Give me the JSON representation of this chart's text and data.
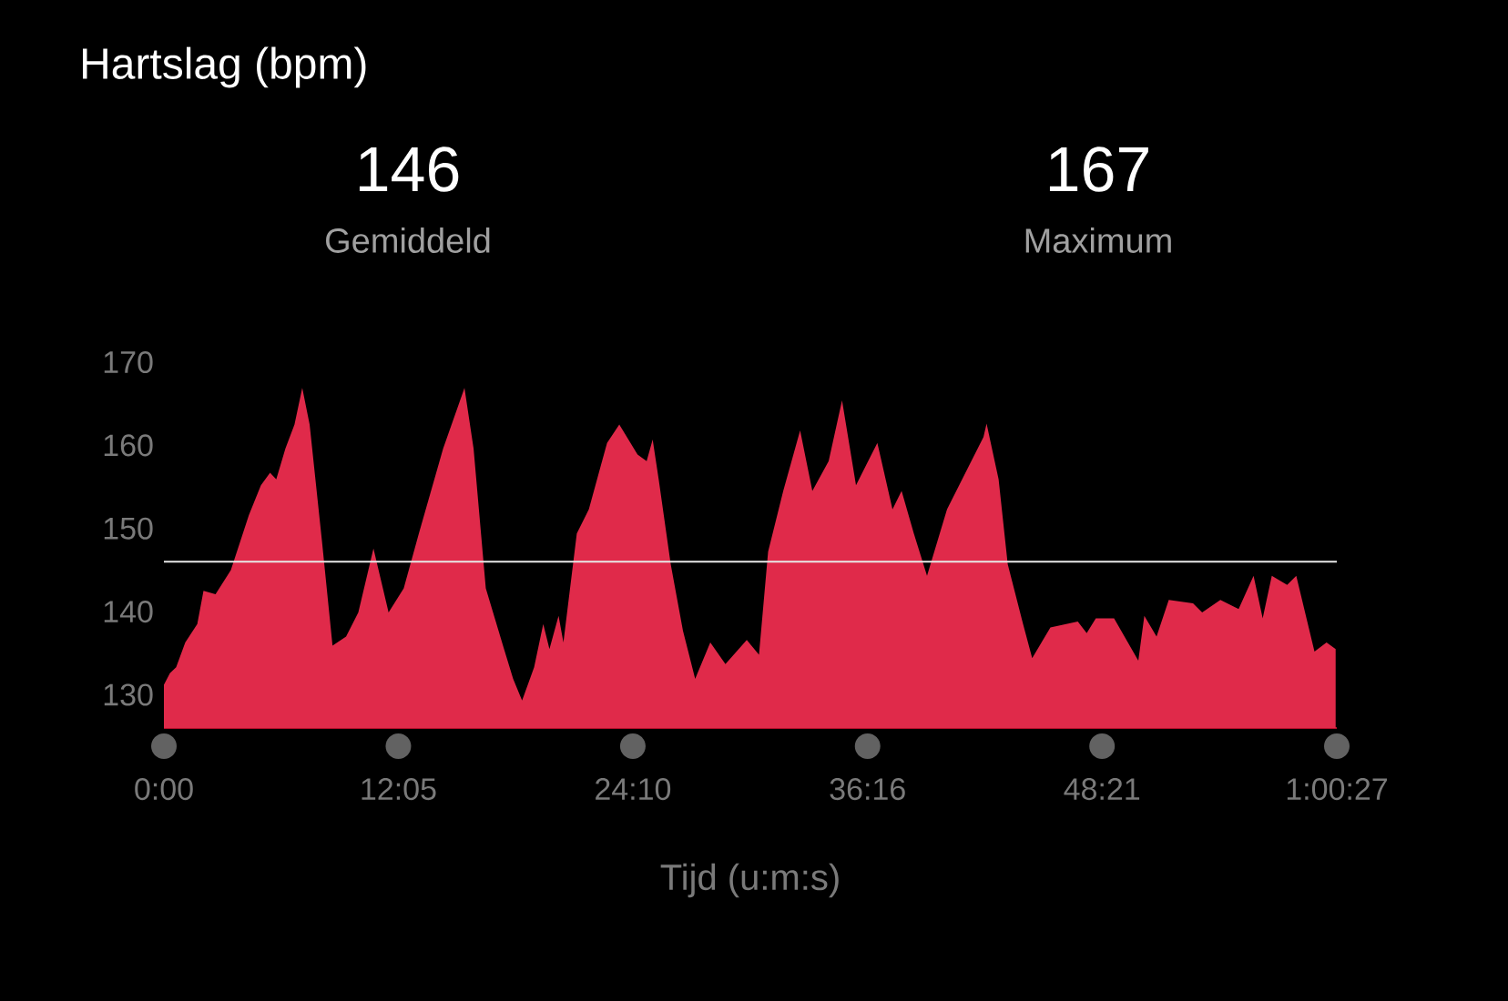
{
  "chart_data": {
    "type": "area",
    "title": "Hartslag (bpm)",
    "xlabel": "Tijd (u:m:s)",
    "annotations": [
      "146",
      "Gemiddeld",
      "167",
      "Maximum"
    ],
    "x": [
      0,
      0.31,
      0.63,
      1.1,
      1.72,
      2.04,
      2.66,
      3.45,
      4.38,
      5.0,
      5.47,
      5.79,
      6.26,
      6.73,
      7.13,
      7.51,
      8.14,
      8.69,
      9.39,
      10.02,
      10.8,
      11.58,
      12.36,
      13.14,
      14.39,
      15.49,
      15.96,
      16.59,
      17.53,
      18.0,
      18.46,
      19.08,
      19.55,
      19.87,
      20.34,
      20.59,
      21.28,
      21.9,
      22.84,
      23.47,
      24.41,
      24.88,
      25.19,
      25.5,
      26.12,
      26.75,
      27.38,
      28.16,
      28.94,
      30.04,
      30.67,
      31.14,
      31.92,
      32.79,
      33.42,
      34.26,
      34.95,
      35.67,
      36.77,
      37.55,
      38.02,
      38.65,
      39.33,
      40.36,
      42.24,
      42.4,
      43.02,
      43.49,
      44.28,
      44.75,
      45.69,
      47.1,
      47.56,
      48.03,
      48.97,
      50.22,
      50.53,
      51.16,
      51.79,
      53.04,
      53.51,
      54.45,
      55.39,
      56.16,
      56.63,
      57.1,
      57.89,
      58.36,
      59.3,
      59.92,
      60.39
    ],
    "values": [
      131.2,
      132.6,
      133.3,
      136.3,
      138.5,
      142.5,
      142.1,
      145.0,
      151.6,
      155.2,
      156.7,
      155.9,
      159.6,
      162.5,
      166.9,
      162.5,
      148.6,
      135.9,
      137.0,
      139.9,
      147.6,
      139.9,
      142.8,
      149.4,
      159.6,
      166.9,
      159.6,
      142.8,
      135.5,
      131.9,
      129.3,
      133.3,
      138.5,
      135.5,
      139.5,
      136.3,
      149.4,
      152.3,
      160.3,
      162.5,
      158.9,
      158.1,
      160.7,
      155.9,
      145.7,
      137.7,
      131.9,
      136.3,
      133.7,
      136.6,
      134.8,
      147.2,
      154.5,
      161.8,
      154.5,
      158.1,
      165.4,
      155.2,
      160.3,
      152.3,
      154.5,
      149.4,
      144.3,
      152.3,
      161.0,
      162.6,
      155.9,
      145.7,
      138.5,
      134.4,
      138.1,
      138.8,
      137.4,
      139.2,
      139.2,
      134.1,
      139.5,
      137.0,
      141.4,
      141.0,
      139.9,
      141.4,
      140.3,
      144.3,
      139.2,
      144.3,
      143.2,
      144.3,
      135.2,
      136.3,
      135.5
    ],
    "color": "#e02a4a",
    "xlim": [
      0,
      60.45
    ],
    "xticks": [
      {
        "value": 0,
        "label": "0:00"
      },
      {
        "value": 12.083,
        "label": "12:05"
      },
      {
        "value": 24.167,
        "label": "24:10"
      },
      {
        "value": 36.267,
        "label": "36:16"
      },
      {
        "value": 48.35,
        "label": "48:21"
      },
      {
        "value": 60.45,
        "label": "1:00:27"
      }
    ],
    "ylim": [
      126,
      170
    ],
    "yticks": [
      130,
      140,
      150,
      160,
      170
    ],
    "ref_lines": [
      {
        "axis": "y",
        "value": 146,
        "color": "#e8e8e8"
      }
    ]
  }
}
